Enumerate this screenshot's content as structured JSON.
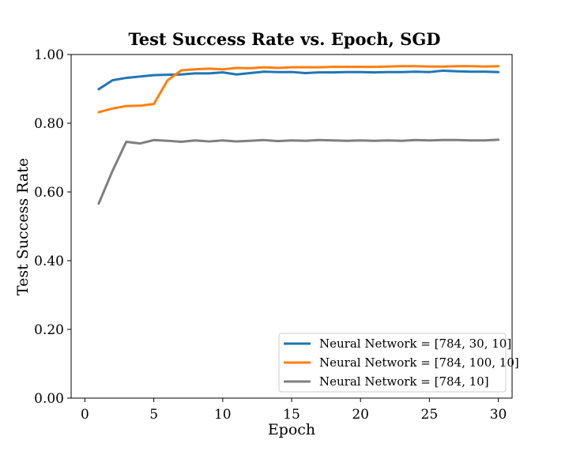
{
  "chart_data": {
    "type": "line",
    "title": "Test Success Rate vs. Epoch, SGD",
    "xlabel": "Epoch",
    "ylabel": "Test Success Rate",
    "xlim": [
      -1,
      31
    ],
    "ylim": [
      0.0,
      1.0
    ],
    "xticks": [
      0,
      5,
      10,
      15,
      20,
      25,
      30
    ],
    "xtick_labels": [
      "0",
      "5",
      "10",
      "15",
      "20",
      "25",
      "30"
    ],
    "yticks": [
      0.0,
      0.2,
      0.4,
      0.6,
      0.8,
      1.0
    ],
    "ytick_labels": [
      "0.00",
      "0.20",
      "0.40",
      "0.60",
      "0.80",
      "1.00"
    ],
    "grid": false,
    "legend_position": "lower-right",
    "x": [
      1,
      2,
      3,
      4,
      5,
      6,
      7,
      8,
      9,
      10,
      11,
      12,
      13,
      14,
      15,
      16,
      17,
      18,
      19,
      20,
      21,
      22,
      23,
      24,
      25,
      26,
      27,
      28,
      29,
      30
    ],
    "series": [
      {
        "name": "Neural Network = [784, 30, 10]",
        "color": "#1f77b4",
        "values": [
          0.899,
          0.925,
          0.932,
          0.936,
          0.94,
          0.941,
          0.942,
          0.945,
          0.945,
          0.948,
          0.942,
          0.946,
          0.95,
          0.949,
          0.949,
          0.946,
          0.948,
          0.948,
          0.949,
          0.949,
          0.948,
          0.949,
          0.949,
          0.95,
          0.949,
          0.953,
          0.951,
          0.95,
          0.95,
          0.949
        ]
      },
      {
        "name": "Neural Network = [784, 100, 10]",
        "color": "#ff7f0e",
        "values": [
          0.832,
          0.843,
          0.85,
          0.851,
          0.856,
          0.925,
          0.954,
          0.957,
          0.959,
          0.957,
          0.961,
          0.96,
          0.963,
          0.961,
          0.963,
          0.963,
          0.963,
          0.964,
          0.964,
          0.964,
          0.964,
          0.965,
          0.966,
          0.966,
          0.965,
          0.965,
          0.966,
          0.966,
          0.965,
          0.966
        ]
      },
      {
        "name": "Neural Network = [784, 10]",
        "color": "#7f7f7f",
        "values": [
          0.566,
          0.661,
          0.746,
          0.741,
          0.751,
          0.749,
          0.746,
          0.75,
          0.747,
          0.75,
          0.747,
          0.749,
          0.751,
          0.748,
          0.75,
          0.749,
          0.751,
          0.75,
          0.749,
          0.75,
          0.749,
          0.75,
          0.749,
          0.751,
          0.75,
          0.751,
          0.751,
          0.75,
          0.75,
          0.752
        ]
      }
    ]
  }
}
